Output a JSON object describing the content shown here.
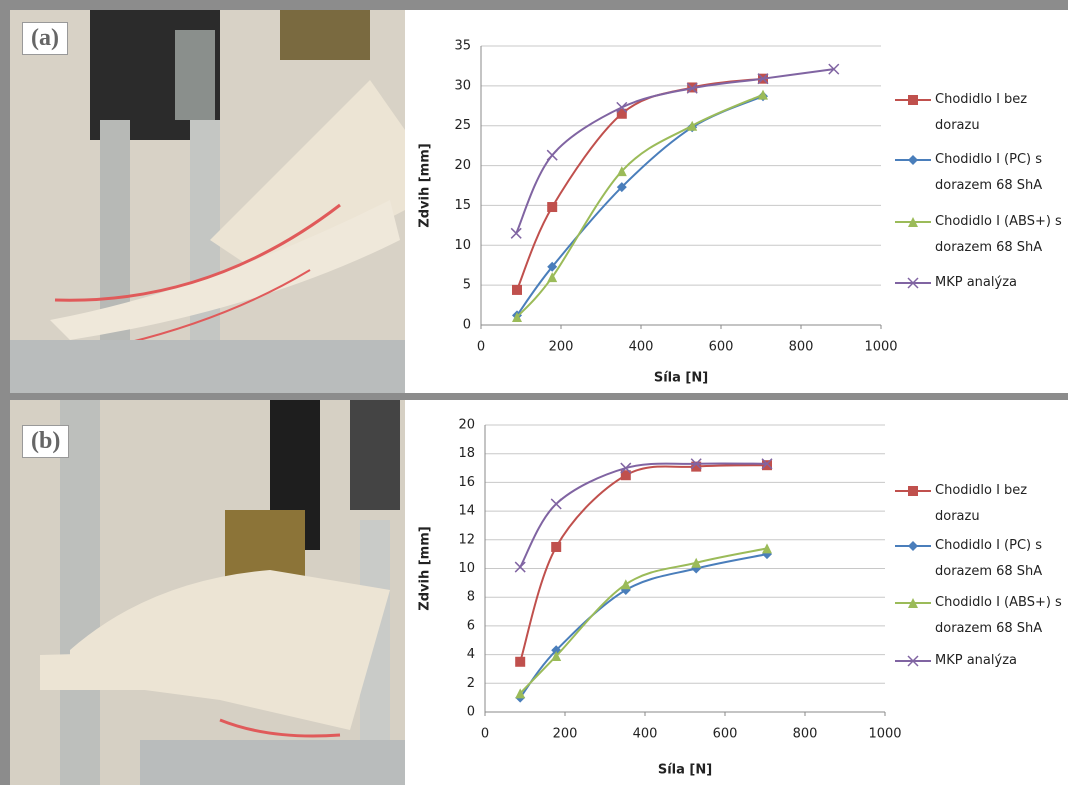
{
  "chart_data": [
    {
      "type": "line",
      "annotations": [
        "(a)"
      ],
      "xlabel": "Síla [N]",
      "ylabel": "Zdvih [mm]",
      "xlim": [
        0,
        1000
      ],
      "xticks": [
        0,
        200,
        400,
        600,
        800,
        1000
      ],
      "ylim": [
        0,
        35
      ],
      "yticks": [
        0,
        5,
        10,
        15,
        20,
        25,
        30,
        35
      ],
      "grid": true,
      "series": [
        {
          "name": "Chodidlo I bez dorazu",
          "color": "#c0504d",
          "marker": "square",
          "x": [
            90,
            178,
            352,
            528,
            705
          ],
          "values": [
            4.4,
            14.8,
            26.5,
            29.8,
            30.9
          ]
        },
        {
          "name": "Chodidlo I (PC) s dorazem 68 ShA",
          "color": "#4a7ebb",
          "marker": "diamond",
          "x": [
            90,
            178,
            352,
            528,
            705
          ],
          "values": [
            1.2,
            7.3,
            17.3,
            24.8,
            28.7
          ]
        },
        {
          "name": "Chodidlo I (ABS+) s dorazem 68 ShA",
          "color": "#9bbb59",
          "marker": "triangle",
          "x": [
            90,
            178,
            352,
            528,
            705
          ],
          "values": [
            1.0,
            6.0,
            19.3,
            25.0,
            28.9
          ]
        },
        {
          "name": "MKP analýza",
          "color": "#8064a2",
          "marker": "x",
          "x": [
            88,
            178,
            352,
            528,
            705,
            882
          ],
          "values": [
            11.5,
            21.3,
            27.3,
            29.7,
            30.9,
            32.1
          ]
        }
      ]
    },
    {
      "type": "line",
      "annotations": [
        "(b)"
      ],
      "xlabel": "Síla [N]",
      "ylabel": "Zdvih [mm]",
      "xlim": [
        0,
        1000
      ],
      "xticks": [
        0,
        200,
        400,
        600,
        800,
        1000
      ],
      "ylim": [
        0,
        20
      ],
      "yticks": [
        0,
        2,
        4,
        6,
        8,
        10,
        12,
        14,
        16,
        18,
        20
      ],
      "grid": true,
      "series": [
        {
          "name": "Chodidlo I bez dorazu",
          "color": "#c0504d",
          "marker": "square",
          "x": [
            88,
            178,
            352,
            528,
            705
          ],
          "values": [
            3.5,
            11.5,
            16.5,
            17.1,
            17.2
          ]
        },
        {
          "name": "Chodidlo I (PC) s dorazem 68 ShA",
          "color": "#4a7ebb",
          "marker": "diamond",
          "x": [
            88,
            178,
            352,
            528,
            705
          ],
          "values": [
            1.0,
            4.3,
            8.5,
            10.0,
            11.0
          ]
        },
        {
          "name": "Chodidlo I (ABS+) s dorazem 68 ShA",
          "color": "#9bbb59",
          "marker": "triangle",
          "x": [
            88,
            178,
            352,
            528,
            705
          ],
          "values": [
            1.3,
            3.9,
            8.9,
            10.4,
            11.4
          ]
        },
        {
          "name": "MKP analýza",
          "color": "#8064a2",
          "marker": "x",
          "x": [
            88,
            178,
            352,
            528,
            705
          ],
          "values": [
            10.1,
            14.5,
            17.0,
            17.3,
            17.3
          ]
        }
      ]
    }
  ]
}
